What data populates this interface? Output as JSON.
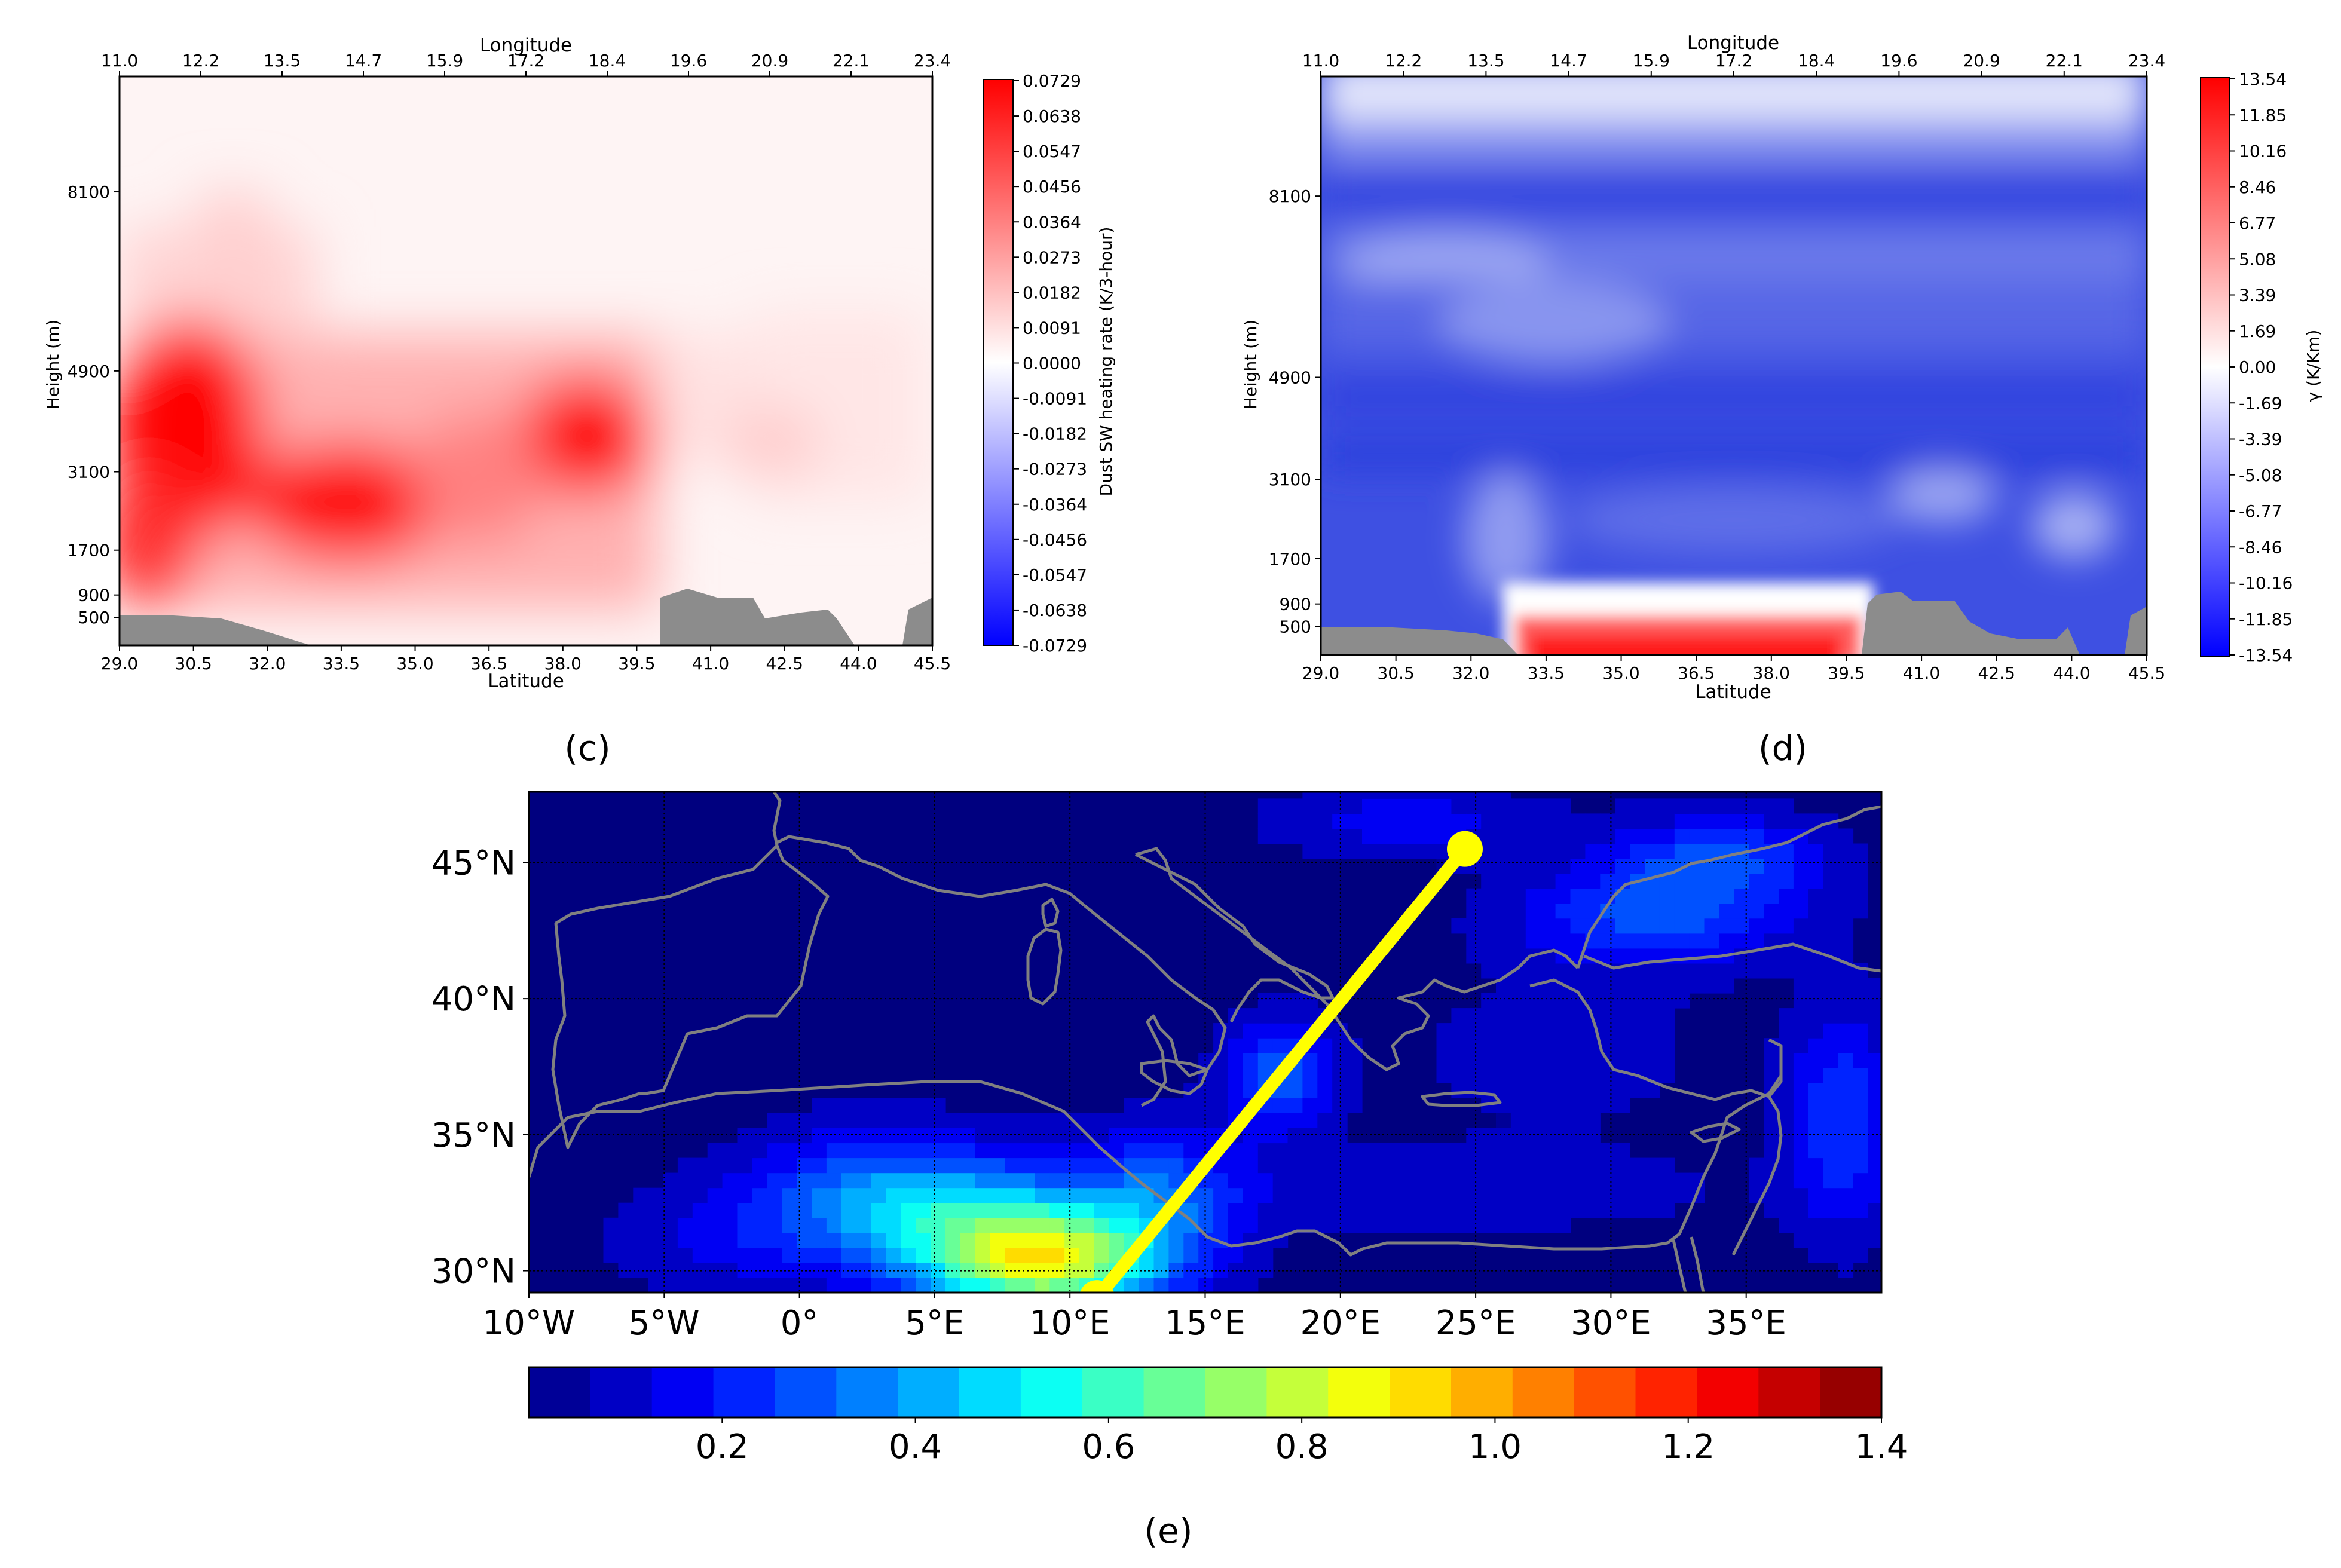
{
  "panel_labels": [
    "(c)",
    "(d)",
    "(e)"
  ],
  "chart_data": [
    {
      "id": "c",
      "type": "heatmap",
      "title": "",
      "xlabel": "Latitude",
      "top_xlabel": "Longitude",
      "ylabel": "Height (m)",
      "colorbar_label": "Dust SW heating rate (K/3-hour)",
      "x_ticks": [
        "29.0",
        "30.5",
        "32.0",
        "33.5",
        "35.0",
        "36.5",
        "38.0",
        "39.5",
        "41.0",
        "42.5",
        "44.0",
        "45.5"
      ],
      "top_ticks": [
        "11.0",
        "12.2",
        "13.5",
        "14.7",
        "15.9",
        "17.2",
        "18.4",
        "19.6",
        "20.9",
        "22.1",
        "23.4"
      ],
      "y_ticks": [
        "500",
        "900",
        "1700",
        "3100",
        "4900",
        "8100"
      ],
      "colorbar_ticks": [
        "0.0729",
        "0.0638",
        "0.0547",
        "0.0456",
        "0.0364",
        "0.0273",
        "0.0182",
        "0.0091",
        "0.0000",
        "-0.0091",
        "-0.0182",
        "-0.0273",
        "-0.0364",
        "-0.0456",
        "-0.0547",
        "-0.0638",
        "-0.0729"
      ],
      "colormap": "blue-white-red",
      "features": [
        {
          "name": "heating-max-west",
          "lat": 30.8,
          "height_m": 4300,
          "value": 0.0729
        },
        {
          "name": "heating-lower-west",
          "lat": 33.6,
          "height_m": 2700,
          "value": 0.06
        },
        {
          "name": "heating-max-central",
          "lat": 38.1,
          "height_m": 3700,
          "value": 0.0729
        }
      ],
      "terrain_color": "#8c8c8c"
    },
    {
      "id": "d",
      "type": "heatmap",
      "title": "",
      "xlabel": "Latitude",
      "top_xlabel": "Longitude",
      "ylabel": "Height (m)",
      "colorbar_label": "γ (K/Km)",
      "x_ticks": [
        "29.0",
        "30.5",
        "32.0",
        "33.5",
        "35.0",
        "36.5",
        "38.0",
        "39.5",
        "41.0",
        "42.5",
        "44.0",
        "45.5"
      ],
      "top_ticks": [
        "11.0",
        "12.2",
        "13.5",
        "14.7",
        "15.9",
        "17.2",
        "18.4",
        "19.6",
        "20.9",
        "22.1",
        "23.4"
      ],
      "y_ticks": [
        "500",
        "900",
        "1700",
        "3100",
        "4900",
        "8100"
      ],
      "colorbar_ticks": [
        "13.54",
        "11.85",
        "10.16",
        "8.46",
        "6.77",
        "5.08",
        "3.39",
        "1.69",
        "0.00",
        "-1.69",
        "-3.39",
        "-5.08",
        "-6.77",
        "-8.46",
        "-10.16",
        "-11.85",
        "-13.54"
      ],
      "colormap": "blue-white-red",
      "features": [
        {
          "name": "surface-inversion",
          "lat_range": [
            33.0,
            39.6
          ],
          "height_range_m": [
            0,
            900
          ],
          "value": 13.54
        }
      ],
      "terrain_color": "#8c8c8c"
    },
    {
      "id": "e",
      "type": "heatmap",
      "title": "",
      "y_ticks": [
        "30°N",
        "35°N",
        "40°N",
        "45°N"
      ],
      "x_ticks": [
        "10°W",
        "5°W",
        "0°",
        "5°E",
        "10°E",
        "15°E",
        "20°E",
        "25°E",
        "30°E",
        "35°E"
      ],
      "colorbar_ticks": [
        "0.2",
        "0.4",
        "0.6",
        "0.8",
        "1.0",
        "1.2",
        "1.4"
      ],
      "colorbar_range": [
        0,
        1.4
      ],
      "colorbar_levels": 22,
      "colormap": "jet",
      "lon_range": [
        -10,
        40
      ],
      "lat_range": [
        29.2,
        47.6
      ],
      "transect": {
        "start": {
          "lon": 11.0,
          "lat": 29.0
        },
        "end": {
          "lon": 24.6,
          "lat": 45.5
        },
        "color": "#ffff00"
      },
      "features": [
        {
          "name": "aod-max-libya",
          "lon": 9.0,
          "lat": 30.2,
          "value": 1.0
        }
      ],
      "coastline_color": "#808080"
    }
  ]
}
